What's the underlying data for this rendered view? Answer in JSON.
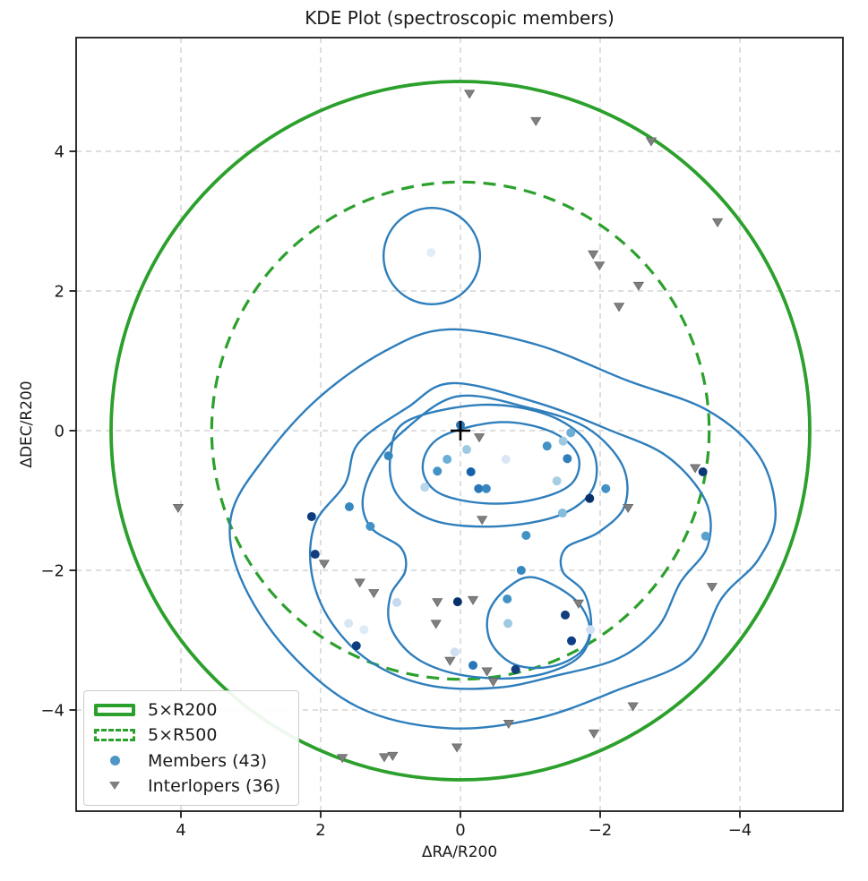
{
  "title": "KDE Plot (spectroscopic members)",
  "axes": {
    "xlabel": "ΔRA/R200",
    "ylabel": "ΔDEC/R200",
    "x_ticks": [
      {
        "v": 4,
        "label": "4"
      },
      {
        "v": 2,
        "label": "2"
      },
      {
        "v": 0,
        "label": "0"
      },
      {
        "v": -2,
        "label": "−2"
      },
      {
        "v": -4,
        "label": "−4"
      }
    ],
    "y_ticks": [
      {
        "v": 4,
        "label": "4"
      },
      {
        "v": 2,
        "label": "2"
      },
      {
        "v": 0,
        "label": "0"
      },
      {
        "v": -2,
        "label": "−2"
      },
      {
        "v": -4,
        "label": "−4"
      }
    ]
  },
  "legend": {
    "items": [
      {
        "label": "5×R200",
        "marker": "solid-rect",
        "color": "#2ca02c"
      },
      {
        "label": "5×R500",
        "marker": "dashed-rect",
        "color": "#2ca02c"
      },
      {
        "label": "Members (43)",
        "marker": "dot",
        "color": "#4e96c8"
      },
      {
        "label": "Interlopers (36)",
        "marker": "triangle-down",
        "color": "#7f7f7f"
      }
    ]
  },
  "colors": {
    "circle_green": "#2ca02c",
    "contour_blue": "#2e7ebc",
    "interloper_gray": "#7f7f7f",
    "grid_gray": "#c9c9c9",
    "text": "#1a1a1a"
  },
  "chart_data": {
    "type": "scatter",
    "title": "KDE Plot (spectroscopic members)",
    "xlabel": "ΔRA/R200",
    "ylabel": "ΔDEC/R200",
    "x_axis": {
      "range": [
        5.5,
        -5.5
      ],
      "inverted": true,
      "ticks": [
        4,
        2,
        0,
        -2,
        -4
      ]
    },
    "y_axis": {
      "range": [
        -5.45,
        5.63
      ],
      "ticks": [
        4,
        2,
        0,
        -2,
        -4
      ]
    },
    "grid": true,
    "legend_position": "lower left",
    "series": [
      {
        "name": "Members (43)",
        "marker": "circle",
        "note": "points colored by shade of blue as rendered; ~40 visible, rest occluded",
        "points": [
          [
            0.0,
            0.08,
            "#2878b9"
          ],
          [
            -0.09,
            -0.27,
            "#9ecae1"
          ],
          [
            0.19,
            -0.41,
            "#6baed6"
          ],
          [
            -0.65,
            -0.41,
            "#d9e7f5"
          ],
          [
            -1.24,
            -0.22,
            "#4292c6"
          ],
          [
            -1.47,
            -0.15,
            "#9ecae1"
          ],
          [
            -1.58,
            -0.03,
            "#6baed6"
          ],
          [
            -1.53,
            -0.4,
            "#2f7fbc"
          ],
          [
            -1.38,
            -0.72,
            "#a6cee3"
          ],
          [
            -0.15,
            -0.59,
            "#1561a9"
          ],
          [
            1.03,
            -0.36,
            "#3787c0"
          ],
          [
            0.33,
            -0.58,
            "#4292c6"
          ],
          [
            -0.26,
            -0.83,
            "#2878b9"
          ],
          [
            -0.37,
            -0.83,
            "#3787c0"
          ],
          [
            0.51,
            -0.81,
            "#b9d7ea"
          ],
          [
            -1.85,
            -0.97,
            "#08306b"
          ],
          [
            -1.46,
            -1.18,
            "#84bcdb"
          ],
          [
            2.13,
            -1.23,
            "#0d3d80"
          ],
          [
            1.59,
            -1.09,
            "#3787c0"
          ],
          [
            1.29,
            -1.37,
            "#4292c6"
          ],
          [
            2.08,
            -1.77,
            "#123e7f"
          ],
          [
            0.91,
            -2.46,
            "#c6dbef"
          ],
          [
            1.6,
            -2.76,
            "#d9e7f5"
          ],
          [
            1.38,
            -2.85,
            "#deebf7"
          ],
          [
            1.49,
            -3.08,
            "#0d3d80"
          ],
          [
            0.04,
            -2.45,
            "#08306b"
          ],
          [
            0.08,
            -3.17,
            "#cde0f1"
          ],
          [
            -0.94,
            -1.5,
            "#4292c6"
          ],
          [
            -0.87,
            -2.0,
            "#3787c0"
          ],
          [
            -0.67,
            -2.41,
            "#4292c6"
          ],
          [
            -1.5,
            -2.64,
            "#123e7f"
          ],
          [
            -0.68,
            -2.76,
            "#9ecae1"
          ],
          [
            -1.86,
            -2.85,
            "#cfe1f2"
          ],
          [
            -1.59,
            -3.01,
            "#0f3d85"
          ],
          [
            -0.79,
            -3.42,
            "#123e7f"
          ],
          [
            -0.18,
            -3.36,
            "#2878b9"
          ],
          [
            0.42,
            2.55,
            "#e2edf8"
          ],
          [
            -3.47,
            -0.59,
            "#0d3878"
          ],
          [
            -2.08,
            -0.83,
            "#4292c6"
          ],
          [
            -3.51,
            -1.51,
            "#5b9fd0"
          ]
        ]
      },
      {
        "name": "Interlopers (36)",
        "marker": "triangle-down",
        "color": "#7f7f7f",
        "note": "~31 visible, rest occluded by legend",
        "points": [
          [
            -0.27,
            -0.09
          ],
          [
            -0.31,
            -1.27
          ],
          [
            1.95,
            -1.9
          ],
          [
            1.44,
            -2.17
          ],
          [
            1.24,
            -2.32
          ],
          [
            0.33,
            -2.45
          ],
          [
            -0.18,
            -2.42
          ],
          [
            0.35,
            -2.76
          ],
          [
            0.15,
            -3.29
          ],
          [
            -0.38,
            -3.44
          ],
          [
            -0.47,
            -3.59
          ],
          [
            -1.69,
            -2.47
          ],
          [
            -2.4,
            -1.1
          ],
          [
            4.04,
            -1.1
          ],
          [
            -0.13,
            4.83
          ],
          [
            -1.08,
            4.44
          ],
          [
            -2.73,
            4.15
          ],
          [
            -3.68,
            2.99
          ],
          [
            -1.9,
            2.53
          ],
          [
            -1.99,
            2.37
          ],
          [
            -2.55,
            2.08
          ],
          [
            -2.27,
            1.78
          ],
          [
            -3.36,
            -0.53
          ],
          [
            -3.6,
            -2.23
          ],
          [
            -0.69,
            -4.19
          ],
          [
            -1.91,
            -4.33
          ],
          [
            0.05,
            -4.53
          ],
          [
            1.09,
            -4.67
          ],
          [
            0.97,
            -4.65
          ],
          [
            1.69,
            -4.68
          ],
          [
            -2.47,
            -3.94
          ]
        ]
      }
    ],
    "overlays": [
      {
        "name": "5×R200",
        "shape": "circle",
        "center": [
          0,
          0
        ],
        "radius": 5.0,
        "line": "solid",
        "color": "#2ca02c"
      },
      {
        "name": "5×R500",
        "shape": "circle",
        "center": [
          0,
          0
        ],
        "radius": 3.56,
        "line": "dashed",
        "color": "#2ca02c"
      },
      {
        "name": "cluster-center-cross",
        "shape": "plus",
        "center": [
          0,
          0
        ],
        "color": "#000000"
      }
    ],
    "kde_contours": {
      "color": "#2e7ebc",
      "island": {
        "center": [
          0.41,
          2.5
        ],
        "radius": 0.69
      },
      "levels": [
        [
          [
            0.18,
            1.45
          ],
          [
            -1.1,
            1.23
          ],
          [
            -2.38,
            0.72
          ],
          [
            -3.54,
            0.29
          ],
          [
            -4.28,
            -0.37
          ],
          [
            -4.51,
            -1.21
          ],
          [
            -4.26,
            -1.85
          ],
          [
            -3.74,
            -2.4
          ],
          [
            -3.28,
            -3.26
          ],
          [
            -2.26,
            -3.71
          ],
          [
            -1.1,
            -4.12
          ],
          [
            0.18,
            -4.26
          ],
          [
            1.46,
            -3.96
          ],
          [
            2.49,
            -3.13
          ],
          [
            3.15,
            -2.1
          ],
          [
            3.28,
            -1.21
          ],
          [
            2.81,
            -0.4
          ],
          [
            2.04,
            0.46
          ],
          [
            1.08,
            1.14
          ]
        ],
        [
          [
            0.12,
            0.68
          ],
          [
            -1.1,
            0.4
          ],
          [
            -2.13,
            0.01
          ],
          [
            -2.96,
            -0.37
          ],
          [
            -3.51,
            -1.01
          ],
          [
            -3.54,
            -1.65
          ],
          [
            -3.15,
            -2.17
          ],
          [
            -2.83,
            -2.81
          ],
          [
            -2.26,
            -3.26
          ],
          [
            -1.36,
            -3.51
          ],
          [
            -0.53,
            -3.68
          ],
          [
            0.44,
            -3.65
          ],
          [
            1.27,
            -3.32
          ],
          [
            1.85,
            -2.74
          ],
          [
            2.13,
            -2.04
          ],
          [
            2.08,
            -1.33
          ],
          [
            1.65,
            -0.76
          ],
          [
            1.46,
            -0.18
          ],
          [
            0.76,
            0.33
          ]
        ],
        [
          [
            0.05,
            0.49
          ],
          [
            -0.97,
            0.33
          ],
          [
            -1.81,
            0.04
          ],
          [
            -2.32,
            -0.5
          ],
          [
            -2.35,
            -1.08
          ],
          [
            -1.97,
            -1.46
          ],
          [
            -1.51,
            -1.68
          ],
          [
            -1.46,
            -2.01
          ],
          [
            -1.77,
            -2.32
          ],
          [
            -1.87,
            -2.81
          ],
          [
            -1.72,
            -3.22
          ],
          [
            -1.23,
            -3.47
          ],
          [
            -0.59,
            -3.55
          ],
          [
            0.12,
            -3.47
          ],
          [
            0.67,
            -3.23
          ],
          [
            1.0,
            -2.81
          ],
          [
            1.0,
            -2.36
          ],
          [
            0.79,
            -2.01
          ],
          [
            0.85,
            -1.68
          ],
          [
            1.27,
            -1.4
          ],
          [
            1.4,
            -1.01
          ],
          [
            1.23,
            -0.5
          ],
          [
            0.82,
            -0.01
          ]
        ],
        [
          [
            0.76,
            0.14
          ],
          [
            -0.33,
            0.37
          ],
          [
            -1.29,
            0.21
          ],
          [
            -1.87,
            -0.24
          ],
          [
            -1.9,
            -0.82
          ],
          [
            -1.42,
            -1.21
          ],
          [
            -0.53,
            -1.37
          ],
          [
            0.37,
            -1.29
          ],
          [
            0.91,
            -0.91
          ],
          [
            1.0,
            -0.35
          ]
        ],
        [
          [
            -1.04,
            -2.1
          ],
          [
            -1.62,
            -2.4
          ],
          [
            -1.85,
            -2.81
          ],
          [
            -1.72,
            -3.17
          ],
          [
            -1.29,
            -3.38
          ],
          [
            -0.78,
            -3.35
          ],
          [
            -0.44,
            -3.04
          ],
          [
            -0.4,
            -2.62
          ],
          [
            -0.65,
            -2.27
          ]
        ],
        [
          [
            -0.55,
            0.12
          ],
          [
            -1.29,
            -0.01
          ],
          [
            -1.68,
            -0.35
          ],
          [
            -1.59,
            -0.76
          ],
          [
            -1.04,
            -0.99
          ],
          [
            -0.33,
            -1.04
          ],
          [
            0.33,
            -0.88
          ],
          [
            0.54,
            -0.5
          ],
          [
            0.28,
            -0.09
          ]
        ]
      ]
    }
  }
}
